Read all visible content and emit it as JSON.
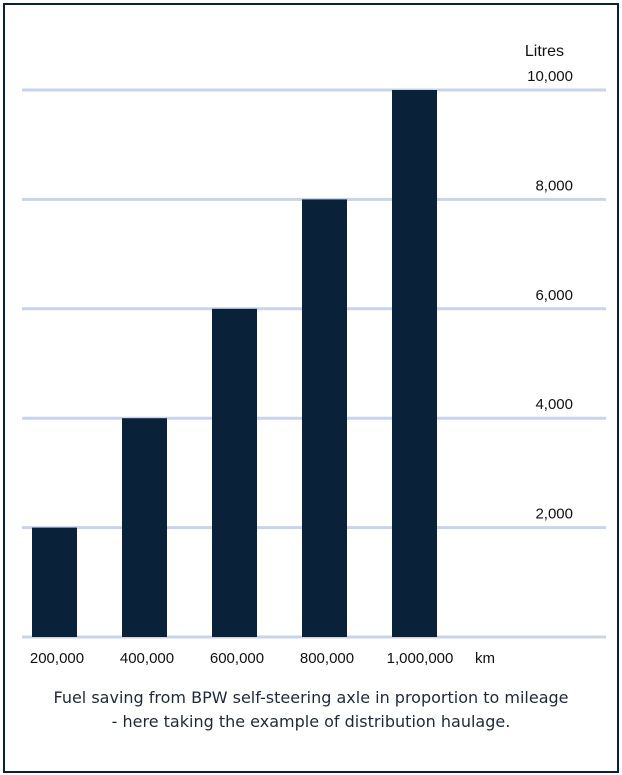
{
  "chart_data": {
    "type": "bar",
    "categories": [
      "200,000",
      "400,000",
      "600,000",
      "800,000",
      "1,000,000"
    ],
    "x_unit": "km",
    "values": [
      2000,
      4000,
      6000,
      8000,
      10000
    ],
    "ylabel": "Litres",
    "ylim": [
      0,
      10000
    ],
    "yticks": [
      "2,000",
      "4,000",
      "6,000",
      "8,000",
      "10,000"
    ],
    "ytick_values": [
      2000,
      4000,
      6000,
      8000,
      10000
    ],
    "grid": true,
    "y_axis_side": "right",
    "bar_color": "#0a2239",
    "grid_color": "#c9d3ea"
  },
  "caption": {
    "line1": "Fuel saving from BPW self-steering axle in proportion to mileage",
    "line2": "- here taking the example of distribution haulage."
  }
}
